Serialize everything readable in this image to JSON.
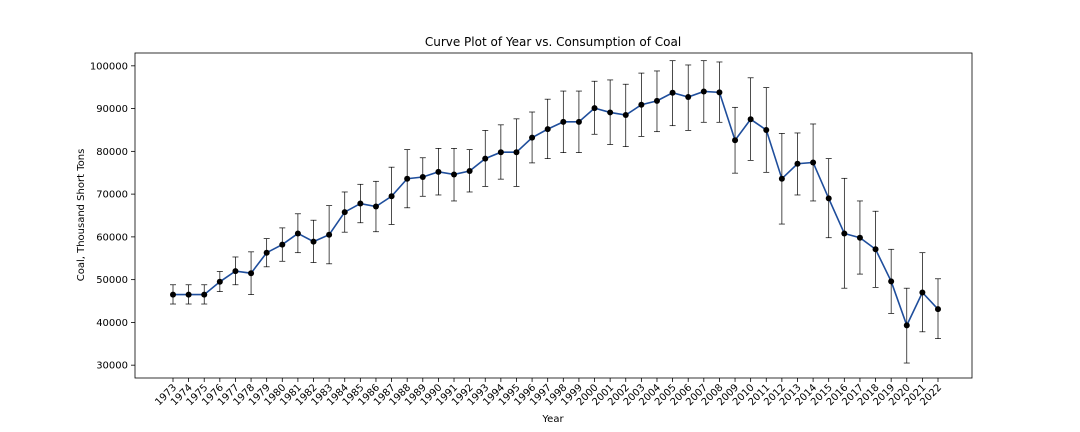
{
  "chart_data": {
    "type": "line",
    "title": "Curve Plot of Year vs. Consumption of Coal",
    "xlabel": "Year",
    "ylabel": "Coal, Thousand Short Tons",
    "ylim": [
      27000,
      103000
    ],
    "yticks": [
      30000,
      40000,
      50000,
      60000,
      70000,
      80000,
      90000,
      100000
    ],
    "ytick_labels": [
      "30000",
      "40000",
      "50000",
      "60000",
      "70000",
      "80000",
      "90000",
      "100000"
    ],
    "grid": false,
    "legend": "none",
    "series": [
      {
        "color": "#1f4e9c",
        "marker_color": "#000000",
        "x": [
          "1973",
          "1974",
          "1975",
          "1976",
          "1977",
          "1978",
          "1979",
          "1980",
          "1981",
          "1982",
          "1983",
          "1984",
          "1985",
          "1986",
          "1987",
          "1988",
          "1989",
          "1990",
          "1991",
          "1992",
          "1993",
          "1994",
          "1995",
          "1996",
          "1997",
          "1998",
          "1999",
          "2000",
          "2001",
          "2002",
          "2003",
          "2004",
          "2005",
          "2006",
          "2007",
          "2008",
          "2009",
          "2010",
          "2011",
          "2012",
          "2013",
          "2014",
          "2015",
          "2016",
          "2017",
          "2018",
          "2019",
          "2020",
          "2021",
          "2022"
        ],
        "values": [
          46500,
          46500,
          46500,
          49500,
          52000,
          51500,
          56300,
          58200,
          60800,
          58900,
          60500,
          65800,
          67800,
          67100,
          69500,
          73600,
          74000,
          75200,
          74600,
          75400,
          78300,
          79800,
          79800,
          83200,
          85200,
          86900,
          86900,
          90100,
          89100,
          88500,
          90900,
          91800,
          93700,
          92700,
          94000,
          93800,
          82600,
          87500,
          85000,
          73600,
          77100,
          77400,
          69000,
          60800,
          59800,
          57100,
          49600,
          39300,
          47000,
          43100
        ],
        "err_lo": [
          44300,
          44300,
          44300,
          47200,
          48800,
          46500,
          53000,
          54300,
          56300,
          54000,
          53700,
          61100,
          63300,
          61200,
          62900,
          66800,
          69500,
          69800,
          68400,
          70500,
          71800,
          73500,
          71800,
          77300,
          78300,
          79700,
          79700,
          84000,
          81600,
          81100,
          83500,
          84600,
          86000,
          84900,
          86800,
          86800,
          74900,
          77900,
          75100,
          63000,
          69800,
          68400,
          59800,
          48000,
          51300,
          48200,
          42100,
          30500,
          37800,
          36200
        ],
        "err_hi": [
          48800,
          48800,
          48800,
          51900,
          55300,
          56500,
          59600,
          62100,
          65400,
          63900,
          67300,
          70500,
          72300,
          73000,
          76300,
          80400,
          78500,
          80700,
          80700,
          80400,
          84900,
          86200,
          87600,
          89200,
          92200,
          94100,
          94100,
          96400,
          96700,
          95700,
          98300,
          98800,
          101200,
          100200,
          101200,
          100900,
          90300,
          97200,
          94900,
          84200,
          84300,
          86400,
          78300,
          73700,
          68400,
          66000,
          57100,
          48000,
          56300,
          50200
        ]
      }
    ]
  }
}
